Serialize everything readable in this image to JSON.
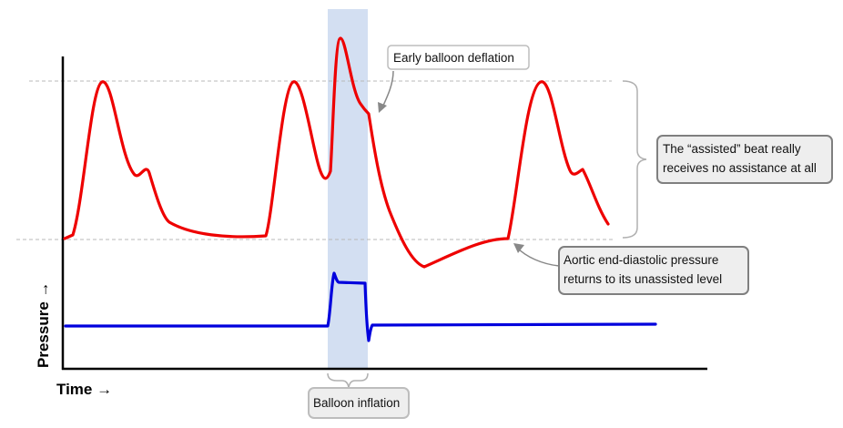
{
  "axes": {
    "x_label": "Time →",
    "y_label": "Pressure →"
  },
  "annotations": {
    "early_deflation": "Early balloon deflation",
    "assisted_beat_line1": "The “assisted” beat really",
    "assisted_beat_line2": "receives no assistance at all",
    "aedp_line1": "Aortic end-diastolic pressure",
    "aedp_line2": "returns to its unassisted level",
    "balloon_inflation": "Balloon inflation"
  },
  "colors": {
    "pressure_trace": "#ee0000",
    "balloon_trace": "#0000dd",
    "inflation_band": "#d3dff2",
    "callout_fill": "#eeeeee",
    "callout_border": "#7f7f7f",
    "guide_line": "#b8b8b8"
  }
}
